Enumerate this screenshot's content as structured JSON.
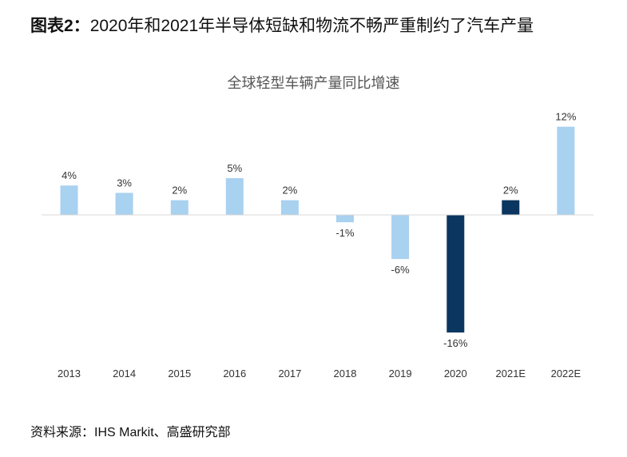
{
  "figure": {
    "label": "图表2：",
    "title": "2020年和2021年半导体短缺和物流不畅严重制约了汽车产量"
  },
  "source": "资料来源：IHS Markit、高盛研究部",
  "colors": {
    "actual": "#a9d1f0",
    "highlight": "#0a3660",
    "axis": "#d9d9d9",
    "label": "#333333"
  },
  "chart_data": {
    "type": "bar",
    "title": "全球轻型车辆产量同比增速",
    "categories": [
      "2013",
      "2014",
      "2015",
      "2016",
      "2017",
      "2018",
      "2019",
      "2020",
      "2021E",
      "2022E"
    ],
    "values": [
      4,
      3,
      2,
      5,
      2,
      -1,
      -6,
      -16,
      2,
      12
    ],
    "value_labels": [
      "4%",
      "3%",
      "2%",
      "5%",
      "2%",
      "-1%",
      "-6%",
      "-16%",
      "2%",
      "12%"
    ],
    "highlighted": [
      "2020",
      "2021E"
    ],
    "ylim": [
      -16,
      12
    ],
    "grid": false,
    "legend": "none",
    "xlabel": "",
    "ylabel": ""
  }
}
